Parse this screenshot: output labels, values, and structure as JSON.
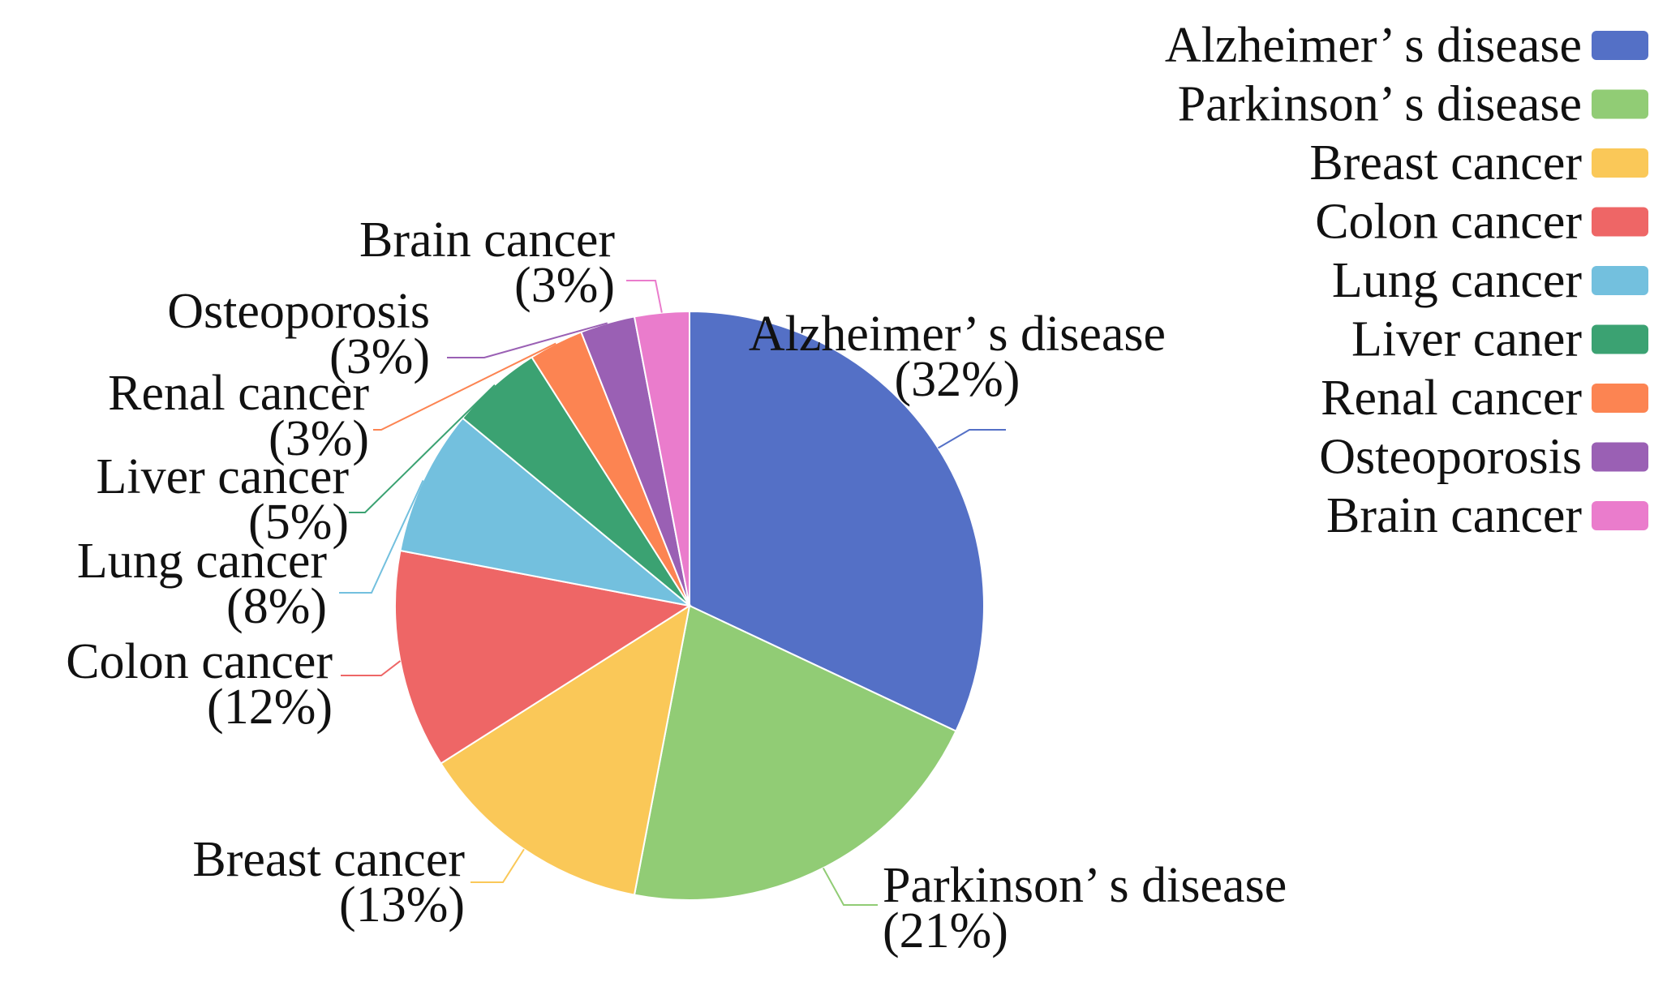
{
  "chart_data": {
    "type": "pie",
    "title": "",
    "slices": [
      {
        "label": "Alzheimer’ s disease",
        "value": 32,
        "value_label": "(32%)",
        "legend_label": "Alzheimer’ s disease",
        "color": "#5470C6"
      },
      {
        "label": "Parkinson’ s disease",
        "value": 21,
        "value_label": "(21%)",
        "legend_label": "Parkinson’ s disease",
        "color": "#91CC75"
      },
      {
        "label": "Breast cancer",
        "value": 13,
        "value_label": "(13%)",
        "legend_label": "Breast cancer",
        "color": "#FAC858"
      },
      {
        "label": "Colon cancer",
        "value": 12,
        "value_label": "(12%)",
        "legend_label": "Colon cancer",
        "color": "#EE6666"
      },
      {
        "label": "Lung cancer",
        "value": 8,
        "value_label": "(8%)",
        "legend_label": "Lung cancer",
        "color": "#73C0DE"
      },
      {
        "label": "Liver cancer",
        "value": 5,
        "value_label": "(5%)",
        "legend_label": "Liver caner",
        "color": "#3BA272"
      },
      {
        "label": "Renal cancer",
        "value": 3,
        "value_label": "(3%)",
        "legend_label": "Renal cancer",
        "color": "#FC8452"
      },
      {
        "label": "Osteoporosis",
        "value": 3,
        "value_label": "(3%)",
        "legend_label": "Osteoporosis",
        "color": "#9A60B4"
      },
      {
        "label": "Brain cancer",
        "value": 3,
        "value_label": "(3%)",
        "legend_label": "Brain cancer",
        "color": "#EA7CCC"
      }
    ],
    "legend_placement": "top-right",
    "start_angle": "12 o'clock",
    "direction": "clockwise"
  }
}
